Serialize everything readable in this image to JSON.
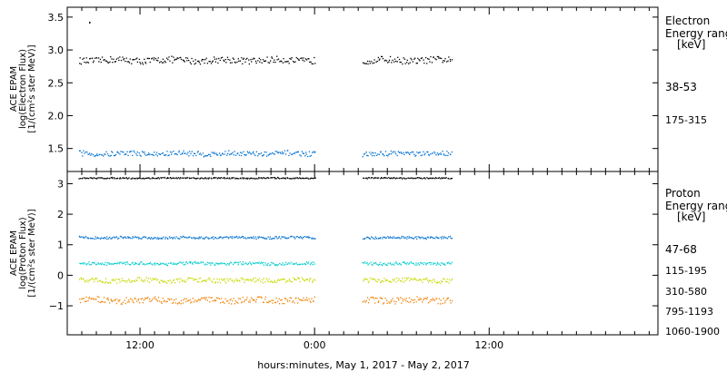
{
  "xaxis": {
    "label": "hours:minutes, May  1, 2017 - May  2, 2017",
    "ticks": [
      {
        "label": "12:00",
        "hour": 12
      },
      {
        "label": "0:00",
        "hour": 24
      },
      {
        "label": "12:00",
        "hour": 36
      }
    ],
    "range_hours": [
      7.0,
      47.6
    ]
  },
  "data_segments_hours": [
    [
      7.8,
      24.0
    ],
    [
      27.3,
      33.4
    ]
  ],
  "chart_data": [
    {
      "type": "scatter",
      "panel": "electron",
      "ylabel_lines": [
        "ACE EPAM",
        "log(Electron Flux)",
        "[1/(cm²s ster MeV)]"
      ],
      "ylim": [
        1.15,
        3.65
      ],
      "yticks": [
        {
          "value": 1.5,
          "label": "1.5"
        },
        {
          "value": 2.0,
          "label": "2.0"
        },
        {
          "value": 2.5,
          "label": "2.5"
        },
        {
          "value": 3.0,
          "label": "3.0"
        },
        {
          "value": 3.5,
          "label": "3.5"
        }
      ],
      "legend_title_lines": [
        "Electron",
        "Energy ranges",
        "[keV]"
      ],
      "series": [
        {
          "name": "38-53",
          "color": "#000000",
          "level": 2.85,
          "spread": 0.05
        },
        {
          "name": "175-315",
          "color": "#0070d0",
          "level": 1.43,
          "spread": 0.04
        }
      ],
      "outlier": {
        "x_hour": 8.5,
        "y": 3.43
      }
    },
    {
      "type": "scatter",
      "panel": "proton",
      "ylabel_lines": [
        "ACE EPAM",
        "log(Proton Flux)",
        "[1/(cm²s ster MeV)]"
      ],
      "ylim": [
        -1.95,
        3.4
      ],
      "yticks": [
        {
          "value": -1,
          "label": "−1"
        },
        {
          "value": 0,
          "label": "0"
        },
        {
          "value": 1,
          "label": "1"
        },
        {
          "value": 2,
          "label": "2"
        },
        {
          "value": 3,
          "label": "3"
        }
      ],
      "legend_title_lines": [
        "Proton",
        "Energy ranges",
        "[keV]"
      ],
      "series": [
        {
          "name": "47-68",
          "color": "#000000",
          "level": 3.2,
          "spread": 0.02
        },
        {
          "name": "115-195",
          "color": "#0070d0",
          "level": 1.25,
          "spread": 0.04
        },
        {
          "name": "310-580",
          "color": "#00cccc",
          "level": 0.4,
          "spread": 0.05
        },
        {
          "name": "795-1193",
          "color": "#c8d800",
          "level": -0.15,
          "spread": 0.08
        },
        {
          "name": "1060-1900",
          "color": "#f08000",
          "level": -0.8,
          "spread": 0.1
        }
      ]
    }
  ]
}
